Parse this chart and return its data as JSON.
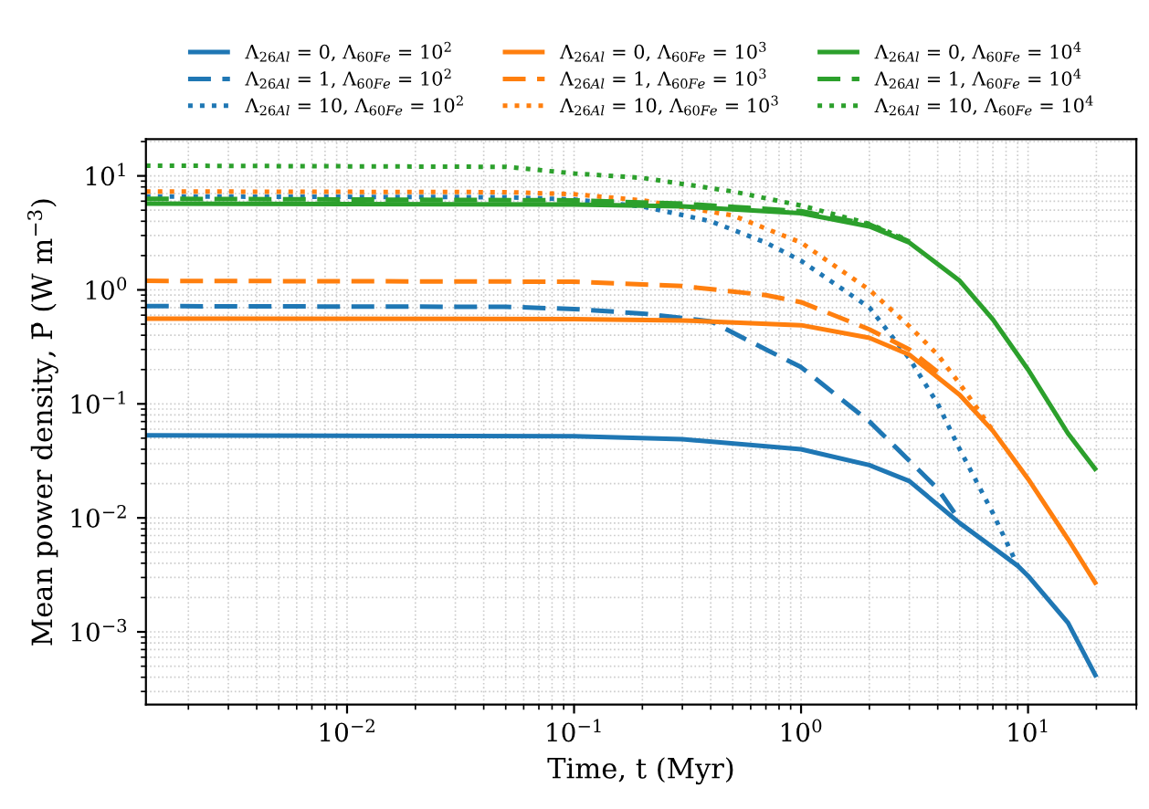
{
  "chart_data": {
    "type": "line",
    "xlabel": "Time, t (Myr)",
    "ylabel": "Mean power density, P̄ (W m$^{−3}$)",
    "log": "xy",
    "grid": true,
    "legend": "top",
    "xlim": [
      0.0013,
      30
    ],
    "ylim": [
      0.00023,
      21
    ],
    "xticks": [
      {
        "value": 0.01,
        "label": "10$^{−2}$"
      },
      {
        "value": 0.1,
        "label": "10$^{−1}$"
      },
      {
        "value": 1,
        "label": "10$^{0}$"
      },
      {
        "value": 10,
        "label": "10$^{1}$"
      }
    ],
    "yticks": [
      {
        "value": 0.001,
        "label": "10$^{−3}$"
      },
      {
        "value": 0.01,
        "label": "10$^{−2}$"
      },
      {
        "value": 0.1,
        "label": "10$^{−1}$"
      },
      {
        "value": 1,
        "label": "10$^{0}$"
      },
      {
        "value": 10,
        "label": "10$^{1}$"
      }
    ],
    "series": [
      {
        "name": "Λ$_{26Al}$ = 0, Λ$_{60Fe}$ = 10$^{2}$",
        "color": "#1f77b4",
        "line_style": "solid",
        "x": [
          0.0013,
          0.1,
          0.3,
          1,
          2,
          3,
          5,
          7,
          9,
          10,
          15,
          20
        ],
        "values": [
          0.053,
          0.052,
          0.049,
          0.04,
          0.029,
          0.021,
          0.009,
          0.0055,
          0.0038,
          0.0031,
          0.0012,
          0.0004
        ]
      },
      {
        "name": "Λ$_{26Al}$ = 1, Λ$_{60Fe}$ = 10$^{2}$",
        "color": "#1f77b4",
        "line_style": "dashed",
        "x": [
          0.0013,
          0.05,
          0.1,
          0.2,
          0.4,
          0.7,
          1,
          2,
          2.6,
          4,
          5
        ],
        "values": [
          0.72,
          0.71,
          0.68,
          0.62,
          0.53,
          0.3,
          0.21,
          0.07,
          0.042,
          0.018,
          0.0095
        ]
      },
      {
        "name": "Λ$_{26Al}$ = 10, Λ$_{60Fe}$ = 10$^{2}$",
        "color": "#1f77b4",
        "line_style": "dotted",
        "x": [
          0.0013,
          0.05,
          0.1,
          0.2,
          0.4,
          0.7,
          1,
          2,
          3,
          4,
          5,
          7,
          9
        ],
        "values": [
          6.6,
          6.5,
          6.2,
          5.4,
          4.0,
          2.6,
          1.8,
          0.7,
          0.25,
          0.1,
          0.04,
          0.011,
          0.0038
        ]
      },
      {
        "name": "Λ$_{26Al}$ = 0, Λ$_{60Fe}$ = 10$^{3}$",
        "color": "#ff7f0e",
        "line_style": "solid",
        "x": [
          0.0013,
          0.1,
          0.3,
          1,
          2,
          3,
          5,
          7,
          10,
          15,
          20
        ],
        "values": [
          0.56,
          0.555,
          0.54,
          0.49,
          0.38,
          0.27,
          0.12,
          0.058,
          0.022,
          0.0065,
          0.0026
        ]
      },
      {
        "name": "Λ$_{26Al}$ = 1, Λ$_{60Fe}$ = 10$^{3}$",
        "color": "#ff7f0e",
        "line_style": "dashed",
        "x": [
          0.0013,
          0.1,
          0.3,
          0.7,
          1,
          2,
          3,
          4
        ],
        "values": [
          1.2,
          1.18,
          1.08,
          0.9,
          0.78,
          0.45,
          0.3,
          0.19
        ]
      },
      {
        "name": "Λ$_{26Al}$ = 10, Λ$_{60Fe}$ = 10$^{3}$",
        "color": "#ff7f0e",
        "line_style": "dotted",
        "x": [
          0.0013,
          0.05,
          0.1,
          0.2,
          0.5,
          1,
          2,
          3,
          4,
          5,
          6,
          7
        ],
        "values": [
          7.3,
          7.2,
          6.9,
          6.1,
          4.5,
          2.6,
          1.0,
          0.48,
          0.27,
          0.15,
          0.09,
          0.058
        ]
      },
      {
        "name": "Λ$_{26Al}$ = 0, Λ$_{60Fe}$ = 10$^{4}$",
        "color": "#2ca02c",
        "line_style": "solid",
        "x": [
          0.0013,
          0.1,
          0.3,
          1,
          2,
          3,
          5,
          7,
          10,
          15,
          20
        ],
        "values": [
          5.7,
          5.6,
          5.4,
          4.7,
          3.6,
          2.6,
          1.2,
          0.55,
          0.2,
          0.055,
          0.026
        ]
      },
      {
        "name": "Λ$_{26Al}$ = 1, Λ$_{60Fe}$ = 10$^{4}$",
        "color": "#2ca02c",
        "line_style": "dashed",
        "x": [
          0.0013,
          0.1,
          0.3,
          1,
          2,
          3
        ],
        "values": [
          6.3,
          6.1,
          5.7,
          4.9,
          3.75,
          2.65
        ]
      },
      {
        "name": "Λ$_{26Al}$ = 10, Λ$_{60Fe}$ = 10$^{4}$",
        "color": "#2ca02c",
        "line_style": "dotted",
        "x": [
          0.0013,
          0.05,
          0.1,
          0.2,
          0.5,
          1,
          2,
          3
        ],
        "values": [
          12.3,
          12.0,
          10.5,
          9.6,
          7.3,
          5.5,
          3.8,
          2.7
        ]
      }
    ]
  }
}
